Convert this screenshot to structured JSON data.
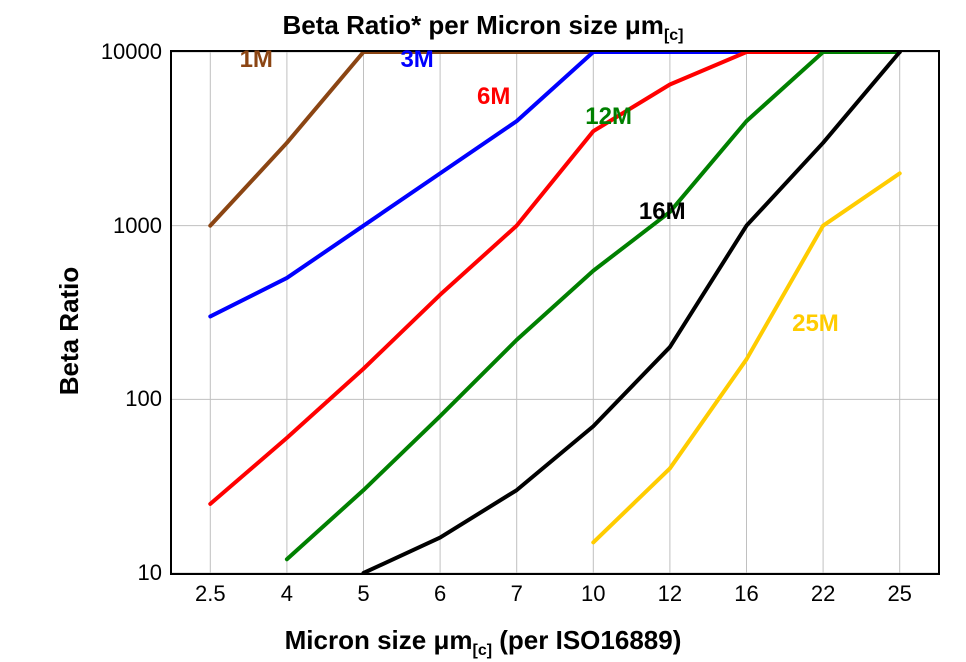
{
  "chart": {
    "type": "line",
    "title_html": "Beta Ratio* per Micron size &mu;m<sub>[c]</sub>",
    "xlabel_html": "Micron size &mu;m<sub>[c]</sub> (per ISO16889)",
    "ylabel": "Beta Ratio",
    "title_fontsize": 26,
    "label_fontsize": 26,
    "tick_fontsize": 22,
    "background_color": "#ffffff",
    "plot_bg": "#ffffff",
    "grid_color": "#c0c0c0",
    "grid_width": 1,
    "border_color": "#000000",
    "border_width": 2,
    "line_width": 4,
    "x_categories": [
      "2.5",
      "4",
      "5",
      "6",
      "7",
      "10",
      "12",
      "16",
      "22",
      "25"
    ],
    "y_scale": "log",
    "y_ticks": [
      10,
      100,
      1000,
      10000
    ],
    "ylim": [
      10,
      10000
    ],
    "series": [
      {
        "name": "1M",
        "color": "#8b4513",
        "label_pos_idx": 0.6,
        "label_y": 9000,
        "data": [
          1000,
          3000,
          10000,
          10000,
          10000,
          10000,
          10000,
          10000,
          10000,
          10000
        ]
      },
      {
        "name": "3M",
        "color": "#0000ff",
        "label_pos_idx": 2.7,
        "label_y": 9000,
        "data": [
          300,
          500,
          1000,
          2000,
          4000,
          10000,
          10000,
          10000,
          10000,
          10000
        ]
      },
      {
        "name": "6M",
        "color": "#ff0000",
        "label_pos_idx": 3.7,
        "label_y": 5500,
        "data": [
          25,
          60,
          150,
          400,
          1000,
          3500,
          6500,
          10000,
          10000,
          10000
        ]
      },
      {
        "name": "12M",
        "color": "#008000",
        "label_pos_idx": 5.2,
        "label_y": 4200,
        "data": [
          null,
          12,
          30,
          80,
          220,
          550,
          1200,
          4000,
          10000,
          10000
        ]
      },
      {
        "name": "16M",
        "color": "#000000",
        "label_pos_idx": 5.9,
        "label_y": 1200,
        "data": [
          null,
          null,
          10,
          16,
          30,
          70,
          200,
          1000,
          3000,
          10000
        ]
      },
      {
        "name": "25M",
        "color": "#ffcc00",
        "label_pos_idx": 7.9,
        "label_y": 270,
        "data": [
          null,
          null,
          null,
          null,
          null,
          15,
          40,
          170,
          1000,
          2000
        ]
      }
    ]
  }
}
